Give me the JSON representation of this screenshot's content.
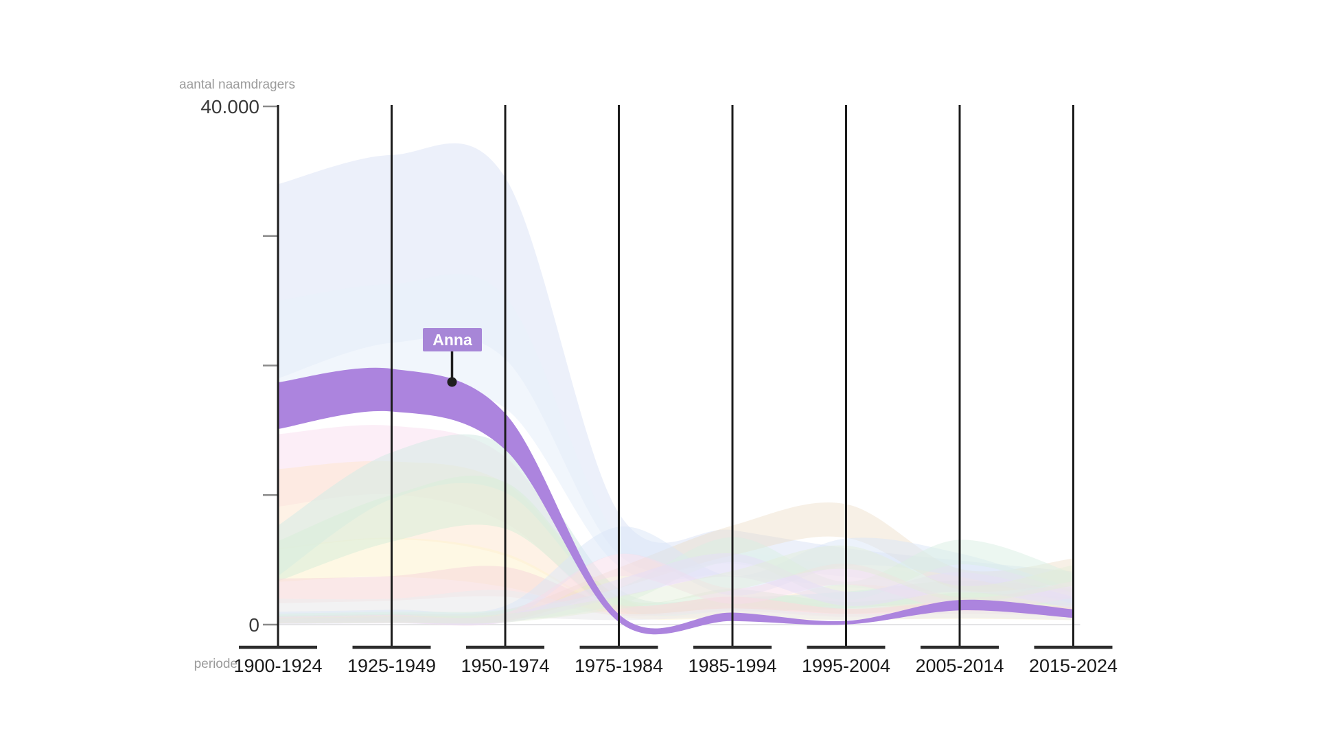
{
  "axes": {
    "y_title": "aantal naamdragers",
    "y_max_label": "40.000",
    "y_zero_label": "0",
    "x_title": "periode"
  },
  "chart_data": {
    "type": "area",
    "variant": "streamgraph of name popularity; many faded ribbons with one highlighted name",
    "categories": [
      "1900-1924",
      "1925-1949",
      "1950-1974",
      "1975-1984",
      "1985-1994",
      "1995-2004",
      "2005-2014",
      "2015-2024"
    ],
    "xlabel": "periode",
    "ylabel": "aantal naamdragers",
    "ylim": [
      0,
      40000
    ],
    "y_ticks": [
      0,
      10000,
      20000,
      30000,
      40000
    ],
    "y_tick_labels_shown": {
      "40000": "40.000",
      "0": "0"
    },
    "legend": "none",
    "grid": "black vertical line per category, T-cap at base, faint zero baseline",
    "highlight": {
      "name": "Anna",
      "color": "#ac84de",
      "label_bg": "#a786d7",
      "label_text_color": "#ffffff",
      "callout_dot_color": "#1f1f1f",
      "center": [
        16900,
        18100,
        14900,
        500,
        600,
        150,
        1500,
        850
      ],
      "thickness": [
        3600,
        3300,
        2800,
        600,
        650,
        280,
        800,
        650
      ]
    },
    "background_ribbons": [
      {
        "name": "blue-big",
        "color": "#dde4f6",
        "opacity": 0.55,
        "center": [
          26500,
          29000,
          27500,
          7000,
          6000,
          4800,
          4000,
          3300
        ],
        "thickness": [
          15000,
          14500,
          14000,
          3200,
          2600,
          2200,
          1900,
          1600
        ]
      },
      {
        "name": "blue-light",
        "color": "#e9f1fb",
        "opacity": 0.65,
        "center": [
          20500,
          21800,
          21000,
          5600,
          4800,
          3700,
          3100,
          2500
        ],
        "thickness": [
          9000,
          9000,
          8600,
          2200,
          1900,
          1600,
          1300,
          1100
        ]
      },
      {
        "name": "pink",
        "color": "#fadef0",
        "opacity": 0.5,
        "center": [
          11900,
          12700,
          10400,
          1300,
          1600,
          1100,
          1300,
          900
        ],
        "thickness": [
          5600,
          5300,
          5100,
          900,
          1100,
          800,
          900,
          700
        ]
      },
      {
        "name": "peach",
        "color": "#fde8d1",
        "opacity": 0.55,
        "center": [
          8900,
          9600,
          8100,
          1600,
          1100,
          2300,
          1600,
          1200
        ],
        "thickness": [
          6200,
          6000,
          5600,
          1100,
          800,
          1600,
          1100,
          800
        ]
      },
      {
        "name": "yellow",
        "color": "#fdf3d2",
        "opacity": 0.6,
        "center": [
          4600,
          5200,
          4200,
          900,
          700,
          600,
          700,
          550
        ],
        "thickness": [
          2600,
          3000,
          2600,
          600,
          500,
          450,
          500,
          400
        ]
      },
      {
        "name": "teal",
        "color": "#d7ebe6",
        "opacity": 0.6,
        "center": [
          5700,
          11500,
          12000,
          2100,
          1600,
          1900,
          2600,
          2100
        ],
        "thickness": [
          3900,
          3600,
          3600,
          1300,
          1100,
          1300,
          1600,
          1300
        ]
      },
      {
        "name": "green",
        "color": "#daeeda",
        "opacity": 0.6,
        "center": [
          4900,
          8200,
          9200,
          1600,
          2100,
          1300,
          1900,
          1600
        ],
        "thickness": [
          3100,
          3600,
          3600,
          1100,
          1300,
          900,
          1100,
          1000
        ]
      },
      {
        "name": "rose-red",
        "color": "#f8dcdb",
        "opacity": 0.65,
        "center": [
          2600,
          2800,
          3300,
          1100,
          1600,
          900,
          1300,
          1000
        ],
        "thickness": [
          1900,
          1900,
          2300,
          800,
          1100,
          650,
          900,
          700
        ]
      },
      {
        "name": "gray",
        "color": "#ececee",
        "opacity": 0.7,
        "center": [
          1200,
          1200,
          1600,
          600,
          900,
          600,
          800,
          600
        ],
        "thickness": [
          1600,
          1600,
          2100,
          500,
          700,
          450,
          600,
          500
        ]
      },
      {
        "name": "tan",
        "color": "#ead9c0",
        "opacity": 0.4,
        "center": [
          400,
          500,
          700,
          3600,
          6500,
          8000,
          3500,
          4200
        ],
        "thickness": [
          600,
          700,
          900,
          1600,
          2300,
          2600,
          1600,
          1800
        ]
      },
      {
        "name": "sky-blue",
        "color": "#d9e6f8",
        "opacity": 0.5,
        "center": [
          600,
          700,
          900,
          6500,
          3000,
          5600,
          4600,
          2200
        ],
        "thickness": [
          800,
          900,
          1100,
          2100,
          1500,
          2100,
          1800,
          1200
        ]
      },
      {
        "name": "mint",
        "color": "#d9efe3",
        "opacity": 0.5,
        "center": [
          500,
          600,
          700,
          2200,
          5800,
          2600,
          5600,
          3200
        ],
        "thickness": [
          700,
          800,
          900,
          1300,
          1900,
          1400,
          1900,
          1500
        ]
      },
      {
        "name": "rose-2",
        "color": "#f8dcea",
        "opacity": 0.5,
        "center": [
          350,
          450,
          550,
          4600,
          2200,
          3900,
          1600,
          2700
        ],
        "thickness": [
          500,
          600,
          700,
          1700,
          1200,
          1600,
          1000,
          1300
        ]
      },
      {
        "name": "lilac",
        "color": "#e6def6",
        "opacity": 0.55,
        "center": [
          250,
          350,
          450,
          2800,
          4600,
          2000,
          3300,
          1700
        ],
        "thickness": [
          400,
          500,
          600,
          1400,
          1800,
          1100,
          1500,
          900
        ]
      },
      {
        "name": "sage",
        "color": "#e3edd8",
        "opacity": 0.45,
        "center": [
          300,
          400,
          500,
          1700,
          3400,
          5200,
          2400,
          3800
        ],
        "thickness": [
          450,
          550,
          650,
          1000,
          1500,
          1800,
          1200,
          1600
        ]
      }
    ]
  },
  "style_colors": {
    "background": "#ffffff",
    "column_line": "#1c1c1c",
    "axis_cap": "#2d2d2d",
    "tick": "#8a8a8a",
    "zero_line": "#e4e4e6",
    "axis_number": "#3a3a3a",
    "axis_title": "#9b9b9b",
    "x_label": "#191919"
  }
}
